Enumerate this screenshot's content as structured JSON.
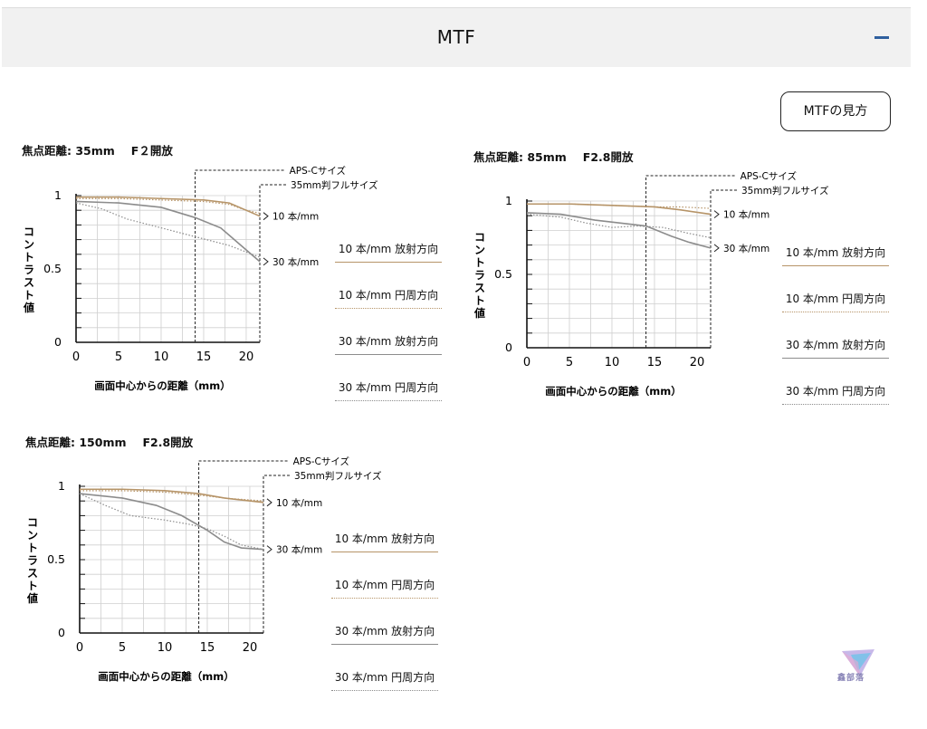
{
  "header": {
    "title": "MTF"
  },
  "howto_button": "MTFの見方",
  "legend_style": [
    {
      "label": "10 本/mm 放射方向",
      "color": "#b69468",
      "dash": "solid"
    },
    {
      "label": "10 本/mm 円周方向",
      "color": "#b69468",
      "dash": "dotted"
    },
    {
      "label": "30 本/mm 放射方向",
      "color": "#8c8c8c",
      "dash": "solid"
    },
    {
      "label": "30 本/mm 円周方向",
      "color": "#8c8c8c",
      "dash": "dotted"
    }
  ],
  "chart_data": [
    {
      "type": "line",
      "title_left": "焦点距離: 35mm",
      "title_right": "F２開放",
      "xlabel": "画面中心からの距離（mm）",
      "ylabel": "コントラスト値",
      "xlim": [
        0,
        21.6
      ],
      "ylim": [
        0,
        1
      ],
      "xticks": [
        "0",
        "5",
        "10",
        "15",
        "20"
      ],
      "xtick_vals": [
        0,
        5,
        10,
        15,
        20
      ],
      "yticks": [
        "0",
        "0.5",
        "1"
      ],
      "ytick_vals": [
        0,
        0.5,
        1
      ],
      "aps_c_label": "APS-Cサイズ",
      "aps_c_x": 14,
      "full_label": "35mm判フルサイズ",
      "full_x": 21.6,
      "marker_10": "10 本/mm",
      "marker_30": "30 本/mm",
      "series": [
        {
          "name": "10 本/mm 放射方向",
          "color": "#b69468",
          "dash": "solid",
          "x": [
            0,
            5,
            10,
            15,
            18,
            20,
            21.6
          ],
          "y": [
            0.99,
            0.99,
            0.98,
            0.97,
            0.95,
            0.9,
            0.86
          ]
        },
        {
          "name": "10 本/mm 円周方向",
          "color": "#b69468",
          "dash": "dotted",
          "x": [
            0,
            5,
            10,
            15,
            18,
            20,
            21.6
          ],
          "y": [
            0.98,
            0.98,
            0.97,
            0.96,
            0.94,
            0.9,
            0.88
          ]
        },
        {
          "name": "30 本/mm 放射方向",
          "color": "#8c8c8c",
          "dash": "solid",
          "x": [
            0,
            5,
            10,
            14,
            17,
            19,
            21.6
          ],
          "y": [
            0.96,
            0.95,
            0.92,
            0.85,
            0.78,
            0.68,
            0.55
          ]
        },
        {
          "name": "30 本/mm 円周方向",
          "color": "#8c8c8c",
          "dash": "dotted",
          "x": [
            0,
            3,
            6,
            10,
            14,
            18,
            21.6
          ],
          "y": [
            0.95,
            0.91,
            0.84,
            0.78,
            0.72,
            0.66,
            0.58
          ]
        }
      ]
    },
    {
      "type": "line",
      "title_left": "焦点距離: 85mm",
      "title_right": "F2.8開放",
      "xlabel": "画面中心からの距離（mm）",
      "ylabel": "コントラスト値",
      "xlim": [
        0,
        21.6
      ],
      "ylim": [
        0,
        1
      ],
      "xticks": [
        "0",
        "5",
        "10",
        "15",
        "20"
      ],
      "xtick_vals": [
        0,
        5,
        10,
        15,
        20
      ],
      "yticks": [
        "0",
        "0.5",
        "1"
      ],
      "ytick_vals": [
        0,
        0.5,
        1
      ],
      "aps_c_label": "APS-Cサイズ",
      "aps_c_x": 14,
      "full_label": "35mm判フルサイズ",
      "full_x": 21.6,
      "marker_10": "10 本/mm",
      "marker_30": "30 本/mm",
      "series": [
        {
          "name": "10 本/mm 放射方向",
          "color": "#b69468",
          "dash": "solid",
          "x": [
            0,
            5,
            10,
            15,
            18,
            21.6
          ],
          "y": [
            0.98,
            0.98,
            0.97,
            0.96,
            0.94,
            0.91
          ]
        },
        {
          "name": "10 本/mm 円周方向",
          "color": "#b69468",
          "dash": "dotted",
          "x": [
            0,
            5,
            10,
            15,
            18,
            21.6
          ],
          "y": [
            0.98,
            0.98,
            0.97,
            0.96,
            0.96,
            0.95
          ]
        },
        {
          "name": "30 本/mm 放射方向",
          "color": "#8c8c8c",
          "dash": "solid",
          "x": [
            0,
            4,
            8,
            11,
            14,
            17,
            19,
            21.6
          ],
          "y": [
            0.92,
            0.91,
            0.87,
            0.85,
            0.83,
            0.76,
            0.72,
            0.68
          ]
        },
        {
          "name": "30 本/mm 円周方向",
          "color": "#8c8c8c",
          "dash": "dotted",
          "x": [
            0,
            4,
            7,
            10,
            13,
            16,
            19,
            21.6
          ],
          "y": [
            0.91,
            0.89,
            0.85,
            0.82,
            0.83,
            0.82,
            0.78,
            0.75
          ]
        }
      ]
    },
    {
      "type": "line",
      "title_left": "焦点距離: 150mm",
      "title_right": "F2.8開放",
      "xlabel": "画面中心からの距離（mm）",
      "ylabel": "コントラスト値",
      "xlim": [
        0,
        21.6
      ],
      "ylim": [
        0,
        1
      ],
      "xticks": [
        "0",
        "5",
        "10",
        "15",
        "20"
      ],
      "xtick_vals": [
        0,
        5,
        10,
        15,
        20
      ],
      "yticks": [
        "0",
        "0.5",
        "1"
      ],
      "ytick_vals": [
        0,
        0.5,
        1
      ],
      "aps_c_label": "APS-Cサイズ",
      "aps_c_x": 14,
      "full_label": "35mm判フルサイズ",
      "full_x": 21.6,
      "marker_10": "10 本/mm",
      "marker_30": "30 本/mm",
      "series": [
        {
          "name": "10 本/mm 放射方向",
          "color": "#b69468",
          "dash": "solid",
          "x": [
            0,
            5,
            10,
            14,
            17,
            21.6
          ],
          "y": [
            0.98,
            0.98,
            0.97,
            0.95,
            0.92,
            0.89
          ]
        },
        {
          "name": "10 本/mm 円周方向",
          "color": "#b69468",
          "dash": "dotted",
          "x": [
            0,
            5,
            10,
            14,
            17,
            21.6
          ],
          "y": [
            0.97,
            0.97,
            0.96,
            0.94,
            0.92,
            0.9
          ]
        },
        {
          "name": "30 本/mm 放射方向",
          "color": "#8c8c8c",
          "dash": "solid",
          "x": [
            0,
            5,
            9,
            12,
            15,
            17,
            19,
            21.6
          ],
          "y": [
            0.95,
            0.92,
            0.87,
            0.8,
            0.7,
            0.62,
            0.58,
            0.57
          ]
        },
        {
          "name": "30 本/mm 円周方向",
          "color": "#8c8c8c",
          "dash": "dotted",
          "x": [
            0,
            3,
            6,
            10,
            13,
            15,
            17,
            19,
            21.6
          ],
          "y": [
            0.95,
            0.87,
            0.8,
            0.77,
            0.74,
            0.71,
            0.66,
            0.6,
            0.57
          ]
        }
      ]
    }
  ],
  "watermark": {
    "text": "鑫部落",
    "icon": "paper-plane-logo-icon"
  }
}
